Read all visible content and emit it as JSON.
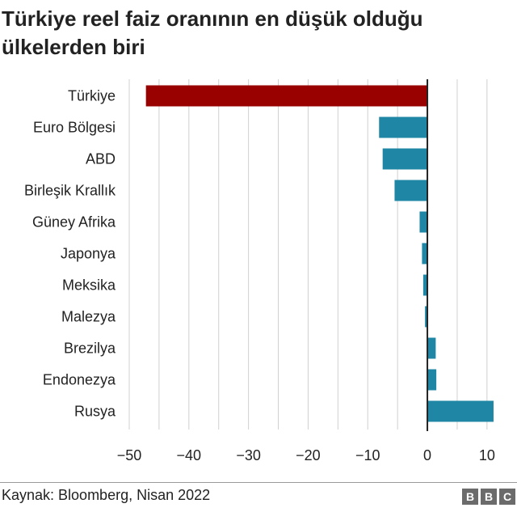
{
  "title": "Türkiye reel faiz oranının en düşük olduğu ülkelerden biri",
  "source": "Kaynak: Bloomberg, Nisan 2022",
  "logo": {
    "text": "BBC",
    "letters": [
      "B",
      "B",
      "C"
    ]
  },
  "colors": {
    "highlight": "#990000",
    "bar": "#1f87a5",
    "grid": "#d0d0d0",
    "zero_line": "#222222"
  },
  "chart_data": {
    "type": "bar",
    "orientation": "horizontal",
    "title": "Türkiye reel faiz oranının en düşük olduğu ülkelerden biri",
    "categories": [
      "Türkiye",
      "Euro Bölgesi",
      "ABD",
      "Birleşik Krallık",
      "Güney Afrika",
      "Japonya",
      "Meksika",
      "Malezya",
      "Brezilya",
      "Endonezya",
      "Rusya"
    ],
    "values": [
      -47.2,
      -8.1,
      -7.5,
      -5.5,
      -1.3,
      -0.9,
      -0.7,
      -0.4,
      1.4,
      1.5,
      11.1
    ],
    "highlight_index": 0,
    "xlim": [
      -50,
      13
    ],
    "xticks": [
      -50,
      -40,
      -30,
      -20,
      -10,
      0,
      10
    ],
    "xtick_labels": [
      "−50",
      "−40",
      "−30",
      "−20",
      "−10",
      "0",
      "10"
    ],
    "xlabel": "",
    "ylabel": "",
    "grid": "vertical"
  }
}
